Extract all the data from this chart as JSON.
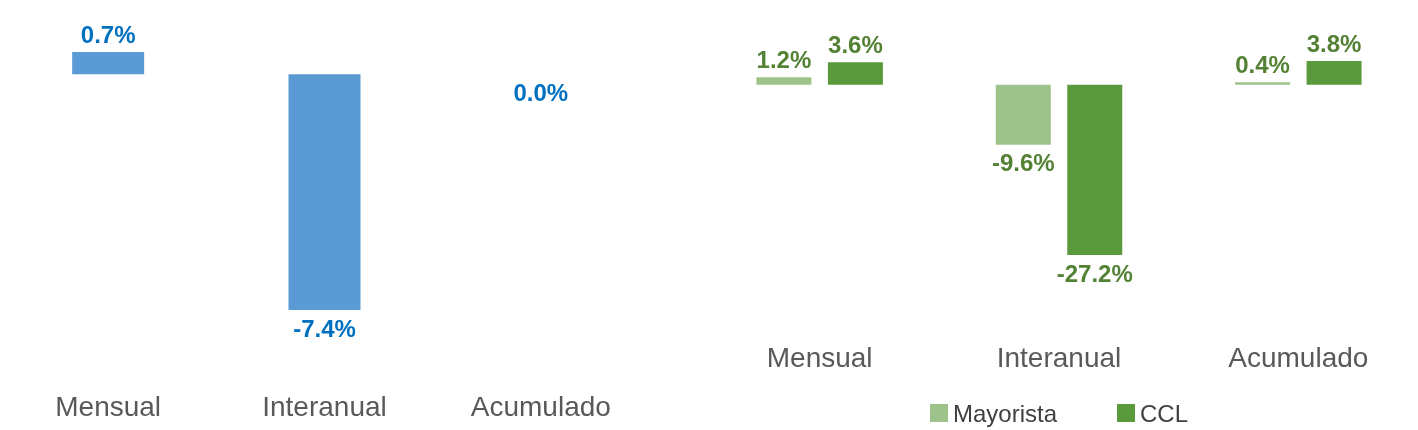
{
  "chart_data": [
    {
      "type": "bar",
      "categories": [
        "Mensual",
        "Interanual",
        "Acumulado"
      ],
      "values": [
        0.7,
        -7.4,
        0.0
      ],
      "color": "#5b9bd5",
      "value_labels": [
        "0.7%",
        "-7.4%",
        "0.0%"
      ],
      "legend": false
    },
    {
      "type": "bar",
      "categories": [
        "Mensual",
        "Interanual",
        "Acumulado"
      ],
      "series": [
        {
          "name": "Mayorista",
          "color": "#9dc38b",
          "values": [
            1.2,
            -9.6,
            0.4
          ],
          "value_labels": [
            "1.2%",
            "-9.6%",
            "0.4%"
          ]
        },
        {
          "name": "CCL",
          "color": "#5b9a3c",
          "values": [
            3.6,
            -27.2,
            3.8
          ],
          "value_labels": [
            "3.6%",
            "-27.2%",
            "3.8%"
          ]
        }
      ],
      "legend": "bottom"
    }
  ]
}
